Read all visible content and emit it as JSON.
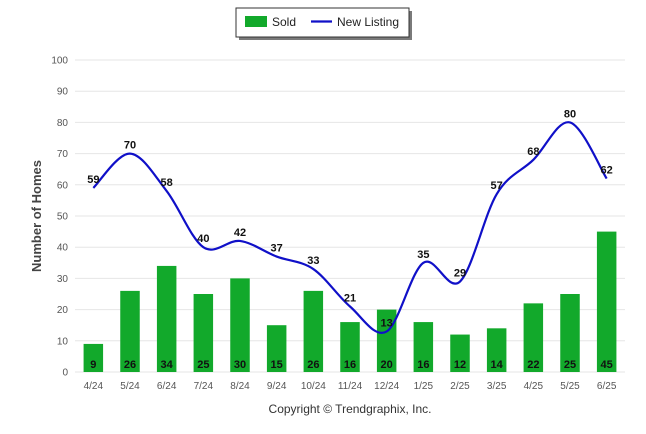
{
  "chart_data": {
    "type": "bar",
    "categories": [
      "4/24",
      "5/24",
      "6/24",
      "7/24",
      "8/24",
      "9/24",
      "10/24",
      "11/24",
      "12/24",
      "1/25",
      "2/25",
      "3/25",
      "4/25",
      "5/25",
      "6/25"
    ],
    "series": [
      {
        "name": "Sold",
        "type": "bar",
        "color": "#12a92b",
        "values": [
          9,
          26,
          34,
          25,
          30,
          15,
          26,
          16,
          20,
          16,
          12,
          14,
          22,
          25,
          45
        ]
      },
      {
        "name": "New Listing",
        "type": "line",
        "color": "#1010c8",
        "values": [
          59,
          70,
          58,
          40,
          42,
          37,
          33,
          21,
          13,
          35,
          29,
          57,
          68,
          80,
          62
        ]
      }
    ],
    "ylabel": "Number of Homes",
    "ylim": [
      0,
      100
    ],
    "yticks": [
      0,
      10,
      20,
      30,
      40,
      50,
      60,
      70,
      80,
      90,
      100
    ],
    "grid": true,
    "legend_position": "top-center",
    "footer": "Copyright © Trendgraphix, Inc."
  }
}
